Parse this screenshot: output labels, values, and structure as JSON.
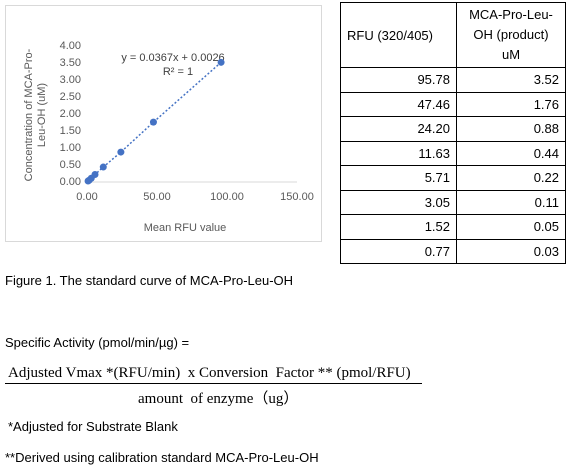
{
  "chart_data": {
    "type": "scatter",
    "y_label": "Concentration of MCA-Pro-Leu-OH (uM)",
    "x_label": "Mean RFU value",
    "annotations": [
      "y = 0.0367x + 0.0026",
      "R² = 1"
    ],
    "x": [
      95.78,
      47.46,
      24.2,
      11.63,
      5.71,
      3.05,
      1.52,
      0.77
    ],
    "series": [
      {
        "color": "#4472c4",
        "values": [
          3.52,
          1.76,
          0.88,
          0.44,
          0.22,
          0.11,
          0.05,
          0.03
        ]
      }
    ],
    "trendline": true,
    "xlim": [
      0,
      150
    ],
    "xticks": [
      {
        "value": 0,
        "label": "0.00"
      },
      {
        "value": 50,
        "label": "50.00"
      },
      {
        "value": 100,
        "label": "100.00"
      },
      {
        "value": 150,
        "label": "150.00"
      }
    ],
    "ylim": [
      0,
      4
    ],
    "yticks": [
      {
        "value": 0,
        "label": "0.00"
      },
      {
        "value": 0.5,
        "label": "0.50"
      },
      {
        "value": 1,
        "label": "1.00"
      },
      {
        "value": 1.5,
        "label": "1.50"
      },
      {
        "value": 2,
        "label": "2.00"
      },
      {
        "value": 2.5,
        "label": "2.50"
      },
      {
        "value": 3,
        "label": "3.00"
      },
      {
        "value": 3.5,
        "label": "3.50"
      },
      {
        "value": 4,
        "label": "4.00"
      }
    ],
    "grid": false
  },
  "table": {
    "header": [
      "RFU (320/405)",
      "MCA-Pro-Leu-OH (product) uM"
    ],
    "rows": [
      [
        "95.78",
        "3.52"
      ],
      [
        "47.46",
        "1.76"
      ],
      [
        "24.20",
        "0.88"
      ],
      [
        "11.63",
        "0.44"
      ],
      [
        "5.71",
        "0.22"
      ],
      [
        "3.05",
        "0.11"
      ],
      [
        "1.52",
        "0.05"
      ],
      [
        "0.77",
        "0.03"
      ]
    ]
  },
  "caption": "Figure 1. The standard curve of MCA-Pro-Leu-OH",
  "formula": {
    "label": "Specific Activity (pmol/min/µg) =",
    "numerator": "Adjusted Vmax *(RFU/min)  x Conversion  Factor ** (pmol/RFU)",
    "denominator": "amount  of enzyme（ug）"
  },
  "notes": [
    "*Adjusted for Substrate Blank",
    "**Derived using calibration standard MCA-Pro-Leu-OH"
  ]
}
